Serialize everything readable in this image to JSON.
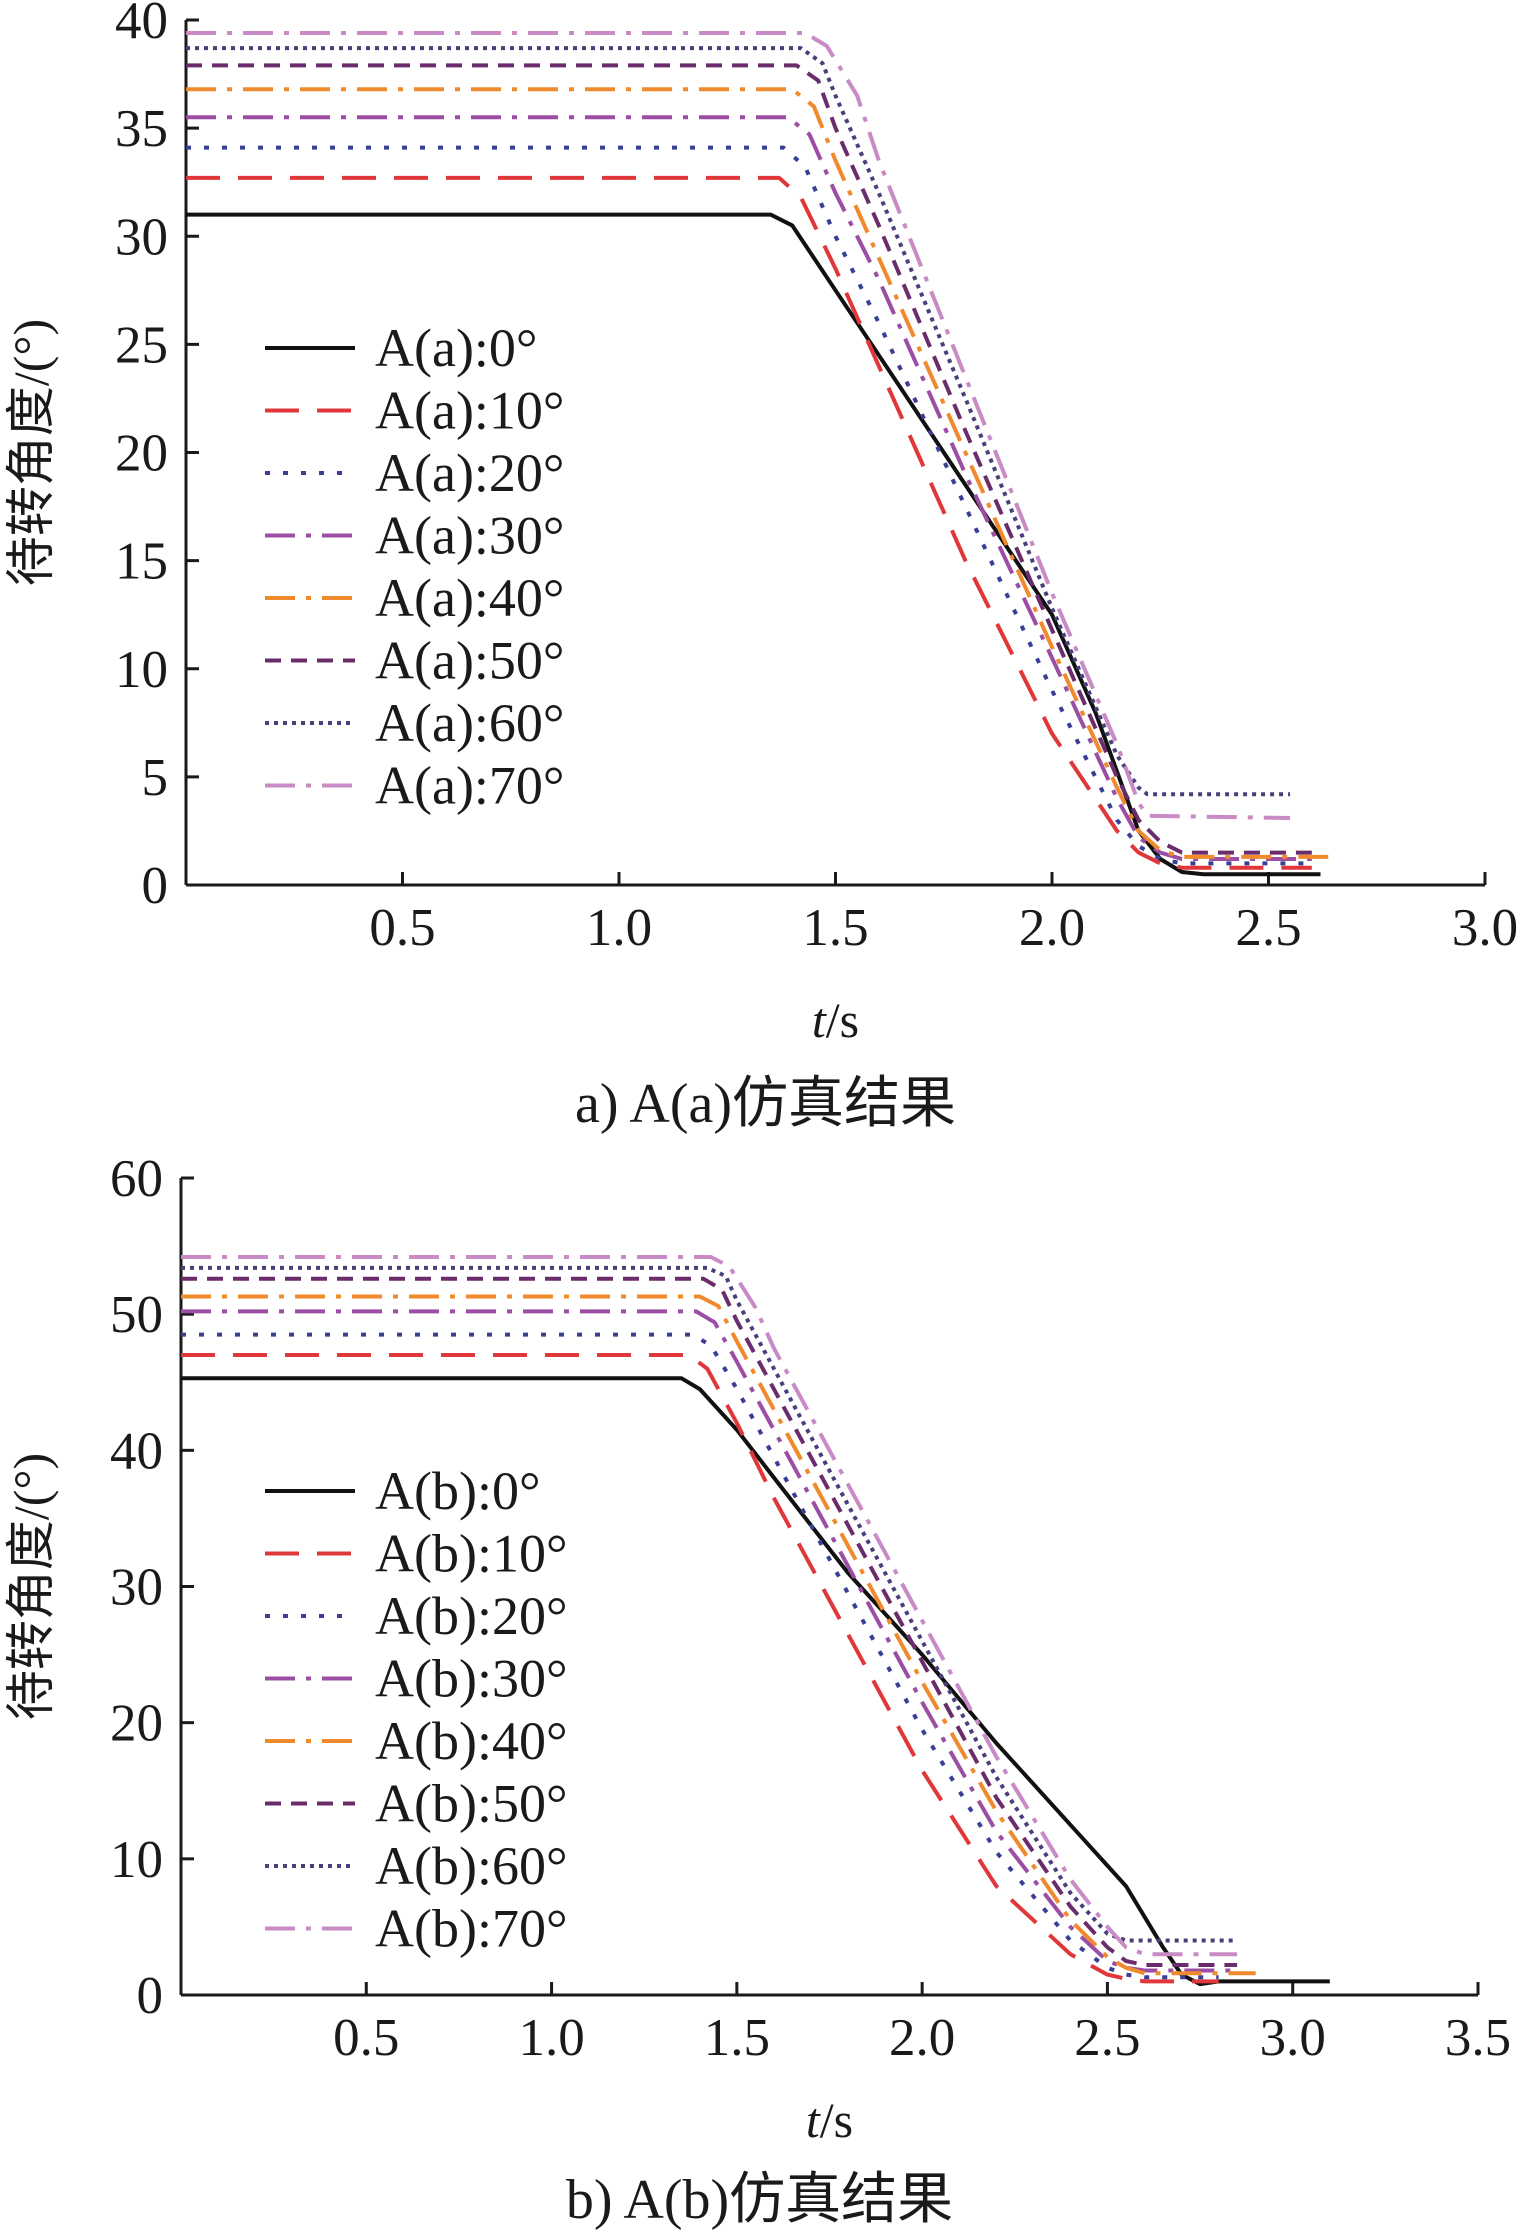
{
  "chart_data": [
    {
      "type": "line",
      "caption": "a) A(a)仿真结果",
      "xlabel_italic": "t",
      "xlabel_unit": "/s",
      "ylabel": "待转角度/(°)",
      "xlim": [
        0,
        3.0
      ],
      "ylim": [
        0,
        40
      ],
      "xticks": [
        "0.5",
        "1.0",
        "1.5",
        "2.0",
        "2.5",
        "3.0"
      ],
      "yticks": [
        "0",
        "5",
        "10",
        "15",
        "20",
        "25",
        "30",
        "35",
        "40"
      ],
      "legend_position": "center-left",
      "series": [
        {
          "name": "A(a):0°",
          "color": "#111111",
          "dash": "solid",
          "x": [
            0,
            1.35,
            1.4,
            1.5,
            1.6,
            1.8,
            1.9,
            2.0,
            2.1,
            2.2,
            2.25,
            2.3,
            2.35,
            2.62
          ],
          "y": [
            31,
            31,
            30.5,
            27.5,
            24.5,
            18.5,
            15.5,
            12.5,
            8,
            2.5,
            1.2,
            0.6,
            0.5,
            0.5
          ]
        },
        {
          "name": "A(a):10°",
          "color": "#e0383a",
          "dash": "long-dash",
          "x": [
            0,
            1.37,
            1.42,
            1.5,
            1.6,
            1.8,
            2.0,
            2.15,
            2.2,
            2.25,
            2.3,
            2.6
          ],
          "y": [
            32.7,
            32.7,
            31.8,
            28.5,
            24,
            15,
            7,
            2.5,
            1.5,
            1,
            0.8,
            0.8
          ]
        },
        {
          "name": "A(a):20°",
          "color": "#3a3f96",
          "dash": "dot",
          "x": [
            0,
            1.38,
            1.43,
            1.5,
            1.6,
            1.8,
            2.0,
            2.15,
            2.2,
            2.25,
            2.3,
            2.6
          ],
          "y": [
            34.1,
            34.1,
            33.2,
            30,
            26,
            17.5,
            9,
            3,
            1.8,
            1.2,
            1,
            1
          ]
        },
        {
          "name": "A(a):30°",
          "color": "#9b4ea3",
          "dash": "dash-dot",
          "x": [
            0,
            1.39,
            1.44,
            1.5,
            1.6,
            1.8,
            2.0,
            2.15,
            2.2,
            2.25,
            2.3,
            2.6
          ],
          "y": [
            35.5,
            35.5,
            34.7,
            32,
            28,
            19,
            10.5,
            4,
            2.2,
            1.5,
            1.2,
            1.2
          ]
        },
        {
          "name": "A(a):40°",
          "color": "#f08a2c",
          "dash": "dash-dot",
          "x": [
            0,
            1.4,
            1.45,
            1.5,
            1.6,
            1.8,
            2.0,
            2.15,
            2.2,
            2.25,
            2.3,
            2.65
          ],
          "y": [
            36.8,
            36.8,
            36,
            33.5,
            29,
            20,
            11,
            4.5,
            2.5,
            1.6,
            1.3,
            1.3
          ]
        },
        {
          "name": "A(a):50°",
          "color": "#6b2c6b",
          "dash": "short-dash",
          "x": [
            0,
            1.41,
            1.46,
            1.5,
            1.6,
            1.8,
            2.0,
            2.15,
            2.2,
            2.25,
            2.3,
            2.6
          ],
          "y": [
            37.9,
            37.9,
            37.2,
            35,
            30.5,
            21,
            11.8,
            5,
            3,
            2,
            1.5,
            1.5
          ]
        },
        {
          "name": "A(a):60°",
          "color": "#4a3f7a",
          "dash": "dense-dot",
          "x": [
            0,
            1.42,
            1.47,
            1.5,
            1.6,
            1.8,
            2.0,
            2.15,
            2.2,
            2.22,
            2.55
          ],
          "y": [
            38.7,
            38.7,
            38,
            36.5,
            32,
            22.5,
            12.8,
            6,
            4.5,
            4.2,
            4.2
          ]
        },
        {
          "name": "A(a):70°",
          "color": "#c98bc6",
          "dash": "dash-dot",
          "x": [
            0,
            1.43,
            1.48,
            1.55,
            1.6,
            1.8,
            2.0,
            2.15,
            2.2,
            2.22,
            2.55
          ],
          "y": [
            39.4,
            39.4,
            38.8,
            36.5,
            33.5,
            23.5,
            13.5,
            6.5,
            3.8,
            3.2,
            3.1
          ]
        }
      ]
    },
    {
      "type": "line",
      "caption": "b) A(b)仿真结果",
      "xlabel_italic": "t",
      "xlabel_unit": "/s",
      "ylabel": "待转角度/(°)",
      "xlim": [
        0,
        3.5
      ],
      "ylim": [
        0,
        60
      ],
      "xticks": [
        "0.5",
        "1.0",
        "1.5",
        "2.0",
        "2.5",
        "3.0",
        "3.5"
      ],
      "yticks": [
        "0",
        "10",
        "20",
        "30",
        "40",
        "50",
        "60"
      ],
      "legend_position": "center-left",
      "series": [
        {
          "name": "A(b):0°",
          "color": "#111111",
          "dash": "solid",
          "x": [
            0,
            1.35,
            1.4,
            1.5,
            1.6,
            1.8,
            2.0,
            2.2,
            2.4,
            2.55,
            2.65,
            2.7,
            2.75,
            2.8,
            3.1
          ],
          "y": [
            45.3,
            45.3,
            44.5,
            41.5,
            38,
            31,
            25,
            18.5,
            12.5,
            8,
            3.5,
            1.5,
            0.8,
            1,
            1
          ]
        },
        {
          "name": "A(b):10°",
          "color": "#e0383a",
          "dash": "long-dash",
          "x": [
            0,
            1.37,
            1.42,
            1.5,
            1.6,
            1.8,
            2.0,
            2.2,
            2.4,
            2.5,
            2.55,
            2.6,
            2.8
          ],
          "y": [
            47,
            47,
            46,
            42,
            36.5,
            26.5,
            16.5,
            8,
            3,
            1.5,
            1.2,
            1,
            1
          ]
        },
        {
          "name": "A(b):20°",
          "color": "#3a3f96",
          "dash": "dot",
          "x": [
            0,
            1.38,
            1.43,
            1.5,
            1.6,
            1.8,
            2.0,
            2.2,
            2.4,
            2.5,
            2.55,
            2.6,
            2.8
          ],
          "y": [
            48.5,
            48.5,
            47.7,
            44.5,
            39.5,
            29.5,
            19.5,
            10.5,
            4,
            2,
            1.5,
            1.3,
            1.3
          ]
        },
        {
          "name": "A(b):30°",
          "color": "#9b4ea3",
          "dash": "dash-dot",
          "x": [
            0,
            1.39,
            1.44,
            1.5,
            1.6,
            1.8,
            2.0,
            2.2,
            2.4,
            2.5,
            2.55,
            2.6,
            2.85
          ],
          "y": [
            50.2,
            50.2,
            49.4,
            46.5,
            41.5,
            31.5,
            21.5,
            12,
            5,
            2.5,
            2,
            1.8,
            1.8
          ]
        },
        {
          "name": "A(b):40°",
          "color": "#f08a2c",
          "dash": "dash-dot",
          "x": [
            0,
            1.4,
            1.45,
            1.5,
            1.6,
            1.8,
            2.0,
            2.2,
            2.4,
            2.5,
            2.55,
            2.6,
            2.9
          ],
          "y": [
            51.3,
            51.3,
            50.6,
            48,
            43,
            33,
            23,
            13.5,
            5.5,
            2.8,
            2,
            1.6,
            1.6
          ]
        },
        {
          "name": "A(b):50°",
          "color": "#6b2c6b",
          "dash": "short-dash",
          "x": [
            0,
            1.41,
            1.46,
            1.5,
            1.6,
            1.8,
            2.0,
            2.2,
            2.4,
            2.5,
            2.55,
            2.6,
            2.85
          ],
          "y": [
            52.6,
            52.6,
            51.8,
            49.5,
            44.5,
            34.5,
            24.5,
            14.5,
            6.5,
            3.5,
            2.5,
            2.2,
            2.2
          ]
        },
        {
          "name": "A(b):60°",
          "color": "#4a3f7a",
          "dash": "dense-dot",
          "x": [
            0,
            1.42,
            1.47,
            1.5,
            1.6,
            1.8,
            2.0,
            2.2,
            2.4,
            2.5,
            2.55,
            2.85
          ],
          "y": [
            53.4,
            53.4,
            52.8,
            51,
            46,
            36,
            26,
            16,
            7.5,
            4.5,
            4,
            4
          ]
        },
        {
          "name": "A(b):70°",
          "color": "#c98bc6",
          "dash": "dash-dot",
          "x": [
            0,
            1.43,
            1.48,
            1.55,
            1.6,
            1.8,
            2.0,
            2.2,
            2.4,
            2.5,
            2.55,
            2.6,
            2.85
          ],
          "y": [
            54.2,
            54.2,
            53.5,
            50.5,
            47.5,
            37.5,
            27.5,
            17.5,
            8.5,
            5,
            3.5,
            3,
            3
          ]
        }
      ]
    }
  ]
}
